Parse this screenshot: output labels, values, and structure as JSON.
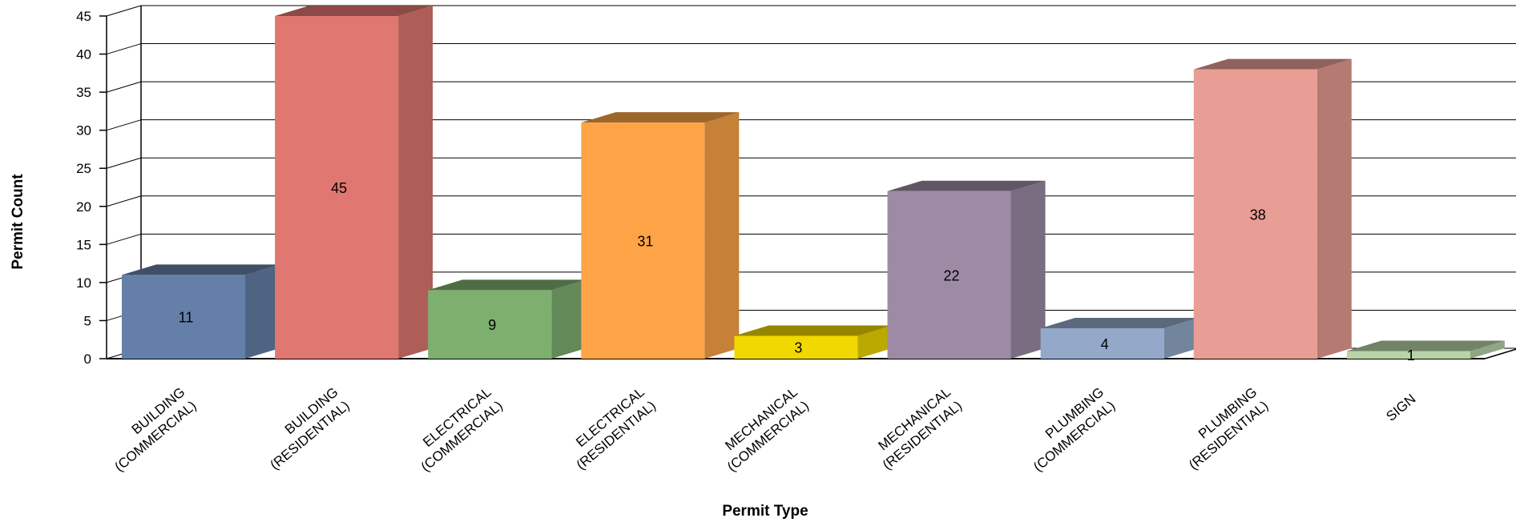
{
  "chart_data": {
    "type": "bar",
    "title": "",
    "xlabel": "Permit Type",
    "ylabel": "Permit Count",
    "ylim": [
      0,
      45
    ],
    "yticks": [
      0,
      5,
      10,
      15,
      20,
      25,
      30,
      35,
      40,
      45
    ],
    "grid": true,
    "legend": "none",
    "categories": [
      [
        "BUILDING",
        "(COMMERCIAL)"
      ],
      [
        "BUILDING",
        "(RESIDENTIAL)"
      ],
      [
        "ELECTRICAL",
        "(COMMERCIAL)"
      ],
      [
        "ELECTRICAL",
        "(RESIDENTIAL)"
      ],
      [
        "MECHANICAL",
        "(COMMERCIAL)"
      ],
      [
        "MECHANICAL",
        "(RESIDENTIAL)"
      ],
      [
        "PLUMBING",
        "(COMMERCIAL)"
      ],
      [
        "PLUMBING",
        "(RESIDENTIAL)"
      ],
      [
        "SIGN"
      ]
    ],
    "values": [
      11,
      45,
      9,
      31,
      3,
      22,
      4,
      38,
      1
    ],
    "colors": [
      "#6580a8",
      "#e07770",
      "#7db06f",
      "#fea446",
      "#f0d800",
      "#9d8aa5",
      "#94a9c9",
      "#e89e94",
      "#b9d3a8"
    ]
  }
}
